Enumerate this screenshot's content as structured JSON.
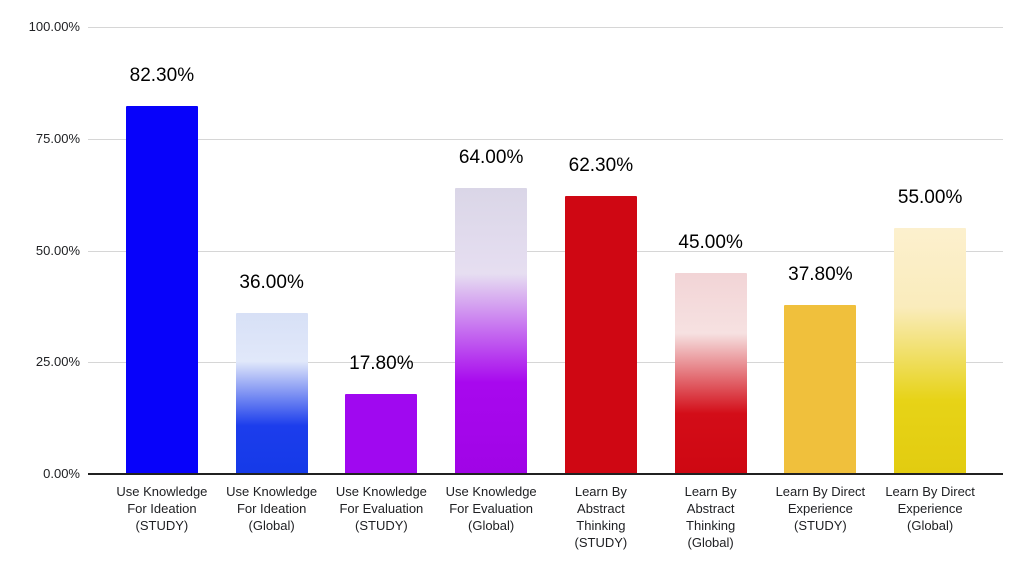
{
  "chart_data": {
    "type": "bar",
    "title": "",
    "xlabel": "",
    "ylabel": "",
    "ylim": [
      0,
      100
    ],
    "grid": true,
    "legend": "none",
    "yticks": [
      "100.00%",
      "75.00%",
      "50.00%",
      "25.00%",
      "0.00%"
    ],
    "categories": [
      "Use Knowledge For Ideation (STUDY)",
      "Use Knowledge For Ideation (Global)",
      "Use Knowledge For Evaluation (STUDY)",
      "Use Knowledge For Evaluation (Global)",
      "Learn By Abstract Thinking (STUDY)",
      "Learn By Abstract Thinking (Global)",
      "Learn By Direct Experience (STUDY)",
      "Learn By Direct Experience (Global)"
    ],
    "values": [
      82.3,
      36.0,
      17.8,
      64.0,
      62.3,
      45.0,
      37.8,
      55.0
    ],
    "value_labels": [
      "82.30%",
      "36.00%",
      "17.80%",
      "64.00%",
      "62.30%",
      "45.00%",
      "37.80%",
      "55.00%"
    ],
    "bars": [
      {
        "category": "Use Knowledge For Ideation (STUDY)",
        "category_lines": "Use Knowledge\nFor Ideation\n(STUDY)",
        "value": 82.3,
        "label": "82.30%",
        "fill": {
          "type": "solid",
          "color": "#0702FA"
        }
      },
      {
        "category": "Use Knowledge For Ideation (Global)",
        "category_lines": "Use Knowledge\nFor Ideation\n(Global)",
        "value": 36.0,
        "label": "36.00%",
        "fill": {
          "type": "gradient",
          "stops": [
            "#D7E0F6 0%",
            "#E1E8FA 30%",
            "#1C3DEC 70%",
            "#153AE8 100%"
          ]
        }
      },
      {
        "category": "Use Knowledge For Evaluation (STUDY)",
        "category_lines": "Use Knowledge\nFor Evaluation\n(STUDY)",
        "value": 17.8,
        "label": "17.80%",
        "fill": {
          "type": "solid",
          "color": "#A008F0"
        }
      },
      {
        "category": "Use Knowledge For Evaluation (Global)",
        "category_lines": "Use Knowledge\nFor Evaluation\n(Global)",
        "value": 64.0,
        "label": "64.00%",
        "fill": {
          "type": "gradient",
          "stops": [
            "#DAD6E7 0%",
            "#E6DEF1 30%",
            "#A808EE 68%",
            "#A004E6 100%"
          ]
        }
      },
      {
        "category": "Learn By Abstract Thinking (STUDY)",
        "category_lines": "Learn By\nAbstract\nThinking\n(STUDY)",
        "value": 62.3,
        "label": "62.30%",
        "fill": {
          "type": "solid",
          "color": "#CF0713"
        }
      },
      {
        "category": "Learn By Abstract Thinking (Global)",
        "category_lines": "Learn By\nAbstract\nThinking\n(Global)",
        "value": 45.0,
        "label": "45.00%",
        "fill": {
          "type": "gradient",
          "stops": [
            "#F2D4D6 0%",
            "#F6E1E1 30%",
            "#D30D18 70%",
            "#CE0712 100%"
          ]
        }
      },
      {
        "category": "Learn By Direct Experience (STUDY)",
        "category_lines": "Learn By Direct\nExperience\n(STUDY)",
        "value": 37.8,
        "label": "37.80%",
        "fill": {
          "type": "solid",
          "color": "#F0C03C"
        }
      },
      {
        "category": "Learn By Direct Experience (Global)",
        "category_lines": "Learn By Direct\nExperience\n(Global)",
        "value": 55.0,
        "label": "55.00%",
        "fill": {
          "type": "gradient",
          "stops": [
            "#FCF0CE 0%",
            "#FAECBC 32%",
            "#E7D317 70%",
            "#E2CC10 100%"
          ]
        }
      }
    ]
  },
  "axis_style": {
    "grid_color": "#D6D6D6",
    "baseline_color": "#212121",
    "tick_label_color": "#202124",
    "value_label_color": "#000000",
    "background": "#FFFFFF"
  }
}
